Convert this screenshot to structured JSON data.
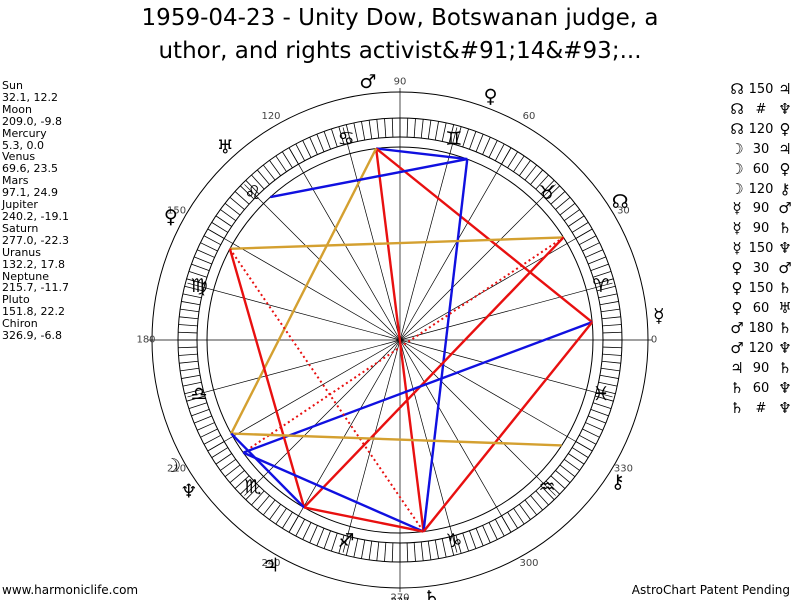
{
  "title_line1": "1959-04-23 - Unity Dow, Botswanan judge, a",
  "title_line2": "uthor, and rights activist&#91;14&#93;...",
  "planets": [
    {
      "name": "Sun",
      "coords": "32.1, 12.2"
    },
    {
      "name": "Moon",
      "coords": "209.0, -9.8"
    },
    {
      "name": "Mercury",
      "coords": "5.3, 0.0"
    },
    {
      "name": "Venus",
      "coords": "69.6, 23.5"
    },
    {
      "name": "Mars",
      "coords": "97.1, 24.9"
    },
    {
      "name": "Jupiter",
      "coords": "240.2, -19.1"
    },
    {
      "name": "Saturn",
      "coords": "277.0, -22.3"
    },
    {
      "name": "Uranus",
      "coords": "132.2, 17.8"
    },
    {
      "name": "Neptune",
      "coords": "215.7, -11.7"
    },
    {
      "name": "Pluto",
      "coords": "151.8, 22.2"
    },
    {
      "name": "Chiron",
      "coords": "326.9, -6.8"
    }
  ],
  "aspects": [
    {
      "g1": "☊",
      "angle": "150",
      "g2": "♃"
    },
    {
      "g1": "☊",
      "angle": "#",
      "g2": "♆"
    },
    {
      "g1": "☊",
      "angle": "120",
      "g2": "♀"
    },
    {
      "g1": "☽",
      "angle": "30",
      "g2": "♃"
    },
    {
      "g1": "☽",
      "angle": "60",
      "g2": "♀"
    },
    {
      "g1": "☽",
      "angle": "120",
      "g2": "⚷"
    },
    {
      "g1": "☿",
      "angle": "90",
      "g2": "♂"
    },
    {
      "g1": "☿",
      "angle": "90",
      "g2": "♄"
    },
    {
      "g1": "☿",
      "angle": "150",
      "g2": "♆"
    },
    {
      "g1": "♀",
      "angle": "30",
      "g2": "♂"
    },
    {
      "g1": "♀",
      "angle": "150",
      "g2": "♄"
    },
    {
      "g1": "♀",
      "angle": "60",
      "g2": "♅"
    },
    {
      "g1": "♂",
      "angle": "180",
      "g2": "♄"
    },
    {
      "g1": "♂",
      "angle": "120",
      "g2": "♆"
    },
    {
      "g1": "♃",
      "angle": "90",
      "g2": "♄"
    },
    {
      "g1": "♄",
      "angle": "60",
      "g2": "♆"
    },
    {
      "g1": "♄",
      "angle": "#",
      "g2": "♆"
    }
  ],
  "footer_left": "www.harmoniclife.com",
  "footer_right": "AstroChart Patent Pending",
  "wheel": {
    "degree_labels": [
      "0",
      "30",
      "60",
      "90",
      "120",
      "150",
      "180",
      "210",
      "240",
      "270",
      "300",
      "330"
    ],
    "bottom_label": "227",
    "zodiac": [
      "♈",
      "♉",
      "♊",
      "♋",
      "♌",
      "♍",
      "♎",
      "♏",
      "♐",
      "♑",
      "♒",
      "♓"
    ],
    "bodies": [
      {
        "symbol": "☊",
        "lon": 32.1
      },
      {
        "symbol": "☽",
        "lon": 209.0
      },
      {
        "symbol": "☿",
        "lon": 5.3
      },
      {
        "symbol": "♀",
        "lon": 69.6
      },
      {
        "symbol": "♂",
        "lon": 97.1
      },
      {
        "symbol": "♃",
        "lon": 240.2
      },
      {
        "symbol": "♄",
        "lon": 277.0
      },
      {
        "symbol": "♅",
        "lon": 132.2
      },
      {
        "symbol": "♆",
        "lon": 215.7
      },
      {
        "symbol": "♀",
        "lon": 151.8
      },
      {
        "symbol": "⚷",
        "lon": 326.9
      }
    ],
    "colors": {
      "red": "#e81010",
      "blue": "#1010e0",
      "gold": "#d4a030"
    },
    "lines": [
      {
        "from": 97.1,
        "to": 69.6,
        "color": "blue",
        "style": "solid"
      },
      {
        "from": 97.1,
        "to": 277.0,
        "color": "red",
        "style": "solid"
      },
      {
        "from": 97.1,
        "to": 5.3,
        "color": "red",
        "style": "solid"
      },
      {
        "from": 97.1,
        "to": 209.0,
        "color": "gold",
        "style": "solid"
      },
      {
        "from": 69.6,
        "to": 132.2,
        "color": "blue",
        "style": "solid"
      },
      {
        "from": 69.6,
        "to": 277.0,
        "color": "blue",
        "style": "solid"
      },
      {
        "from": 32.1,
        "to": 151.8,
        "color": "gold",
        "style": "solid"
      },
      {
        "from": 32.1,
        "to": 240.2,
        "color": "red",
        "style": "solid"
      },
      {
        "from": 32.1,
        "to": 215.7,
        "color": "red",
        "style": "dotted"
      },
      {
        "from": 5.3,
        "to": 215.7,
        "color": "blue",
        "style": "solid"
      },
      {
        "from": 5.3,
        "to": 277.0,
        "color": "red",
        "style": "solid"
      },
      {
        "from": 151.8,
        "to": 240.2,
        "color": "red",
        "style": "solid"
      },
      {
        "from": 151.8,
        "to": 277.0,
        "color": "red",
        "style": "dotted"
      },
      {
        "from": 209.0,
        "to": 326.9,
        "color": "gold",
        "style": "solid"
      },
      {
        "from": 209.0,
        "to": 240.2,
        "color": "blue",
        "style": "solid"
      },
      {
        "from": 215.7,
        "to": 277.0,
        "color": "blue",
        "style": "solid"
      },
      {
        "from": 240.2,
        "to": 277.0,
        "color": "red",
        "style": "solid"
      }
    ]
  }
}
